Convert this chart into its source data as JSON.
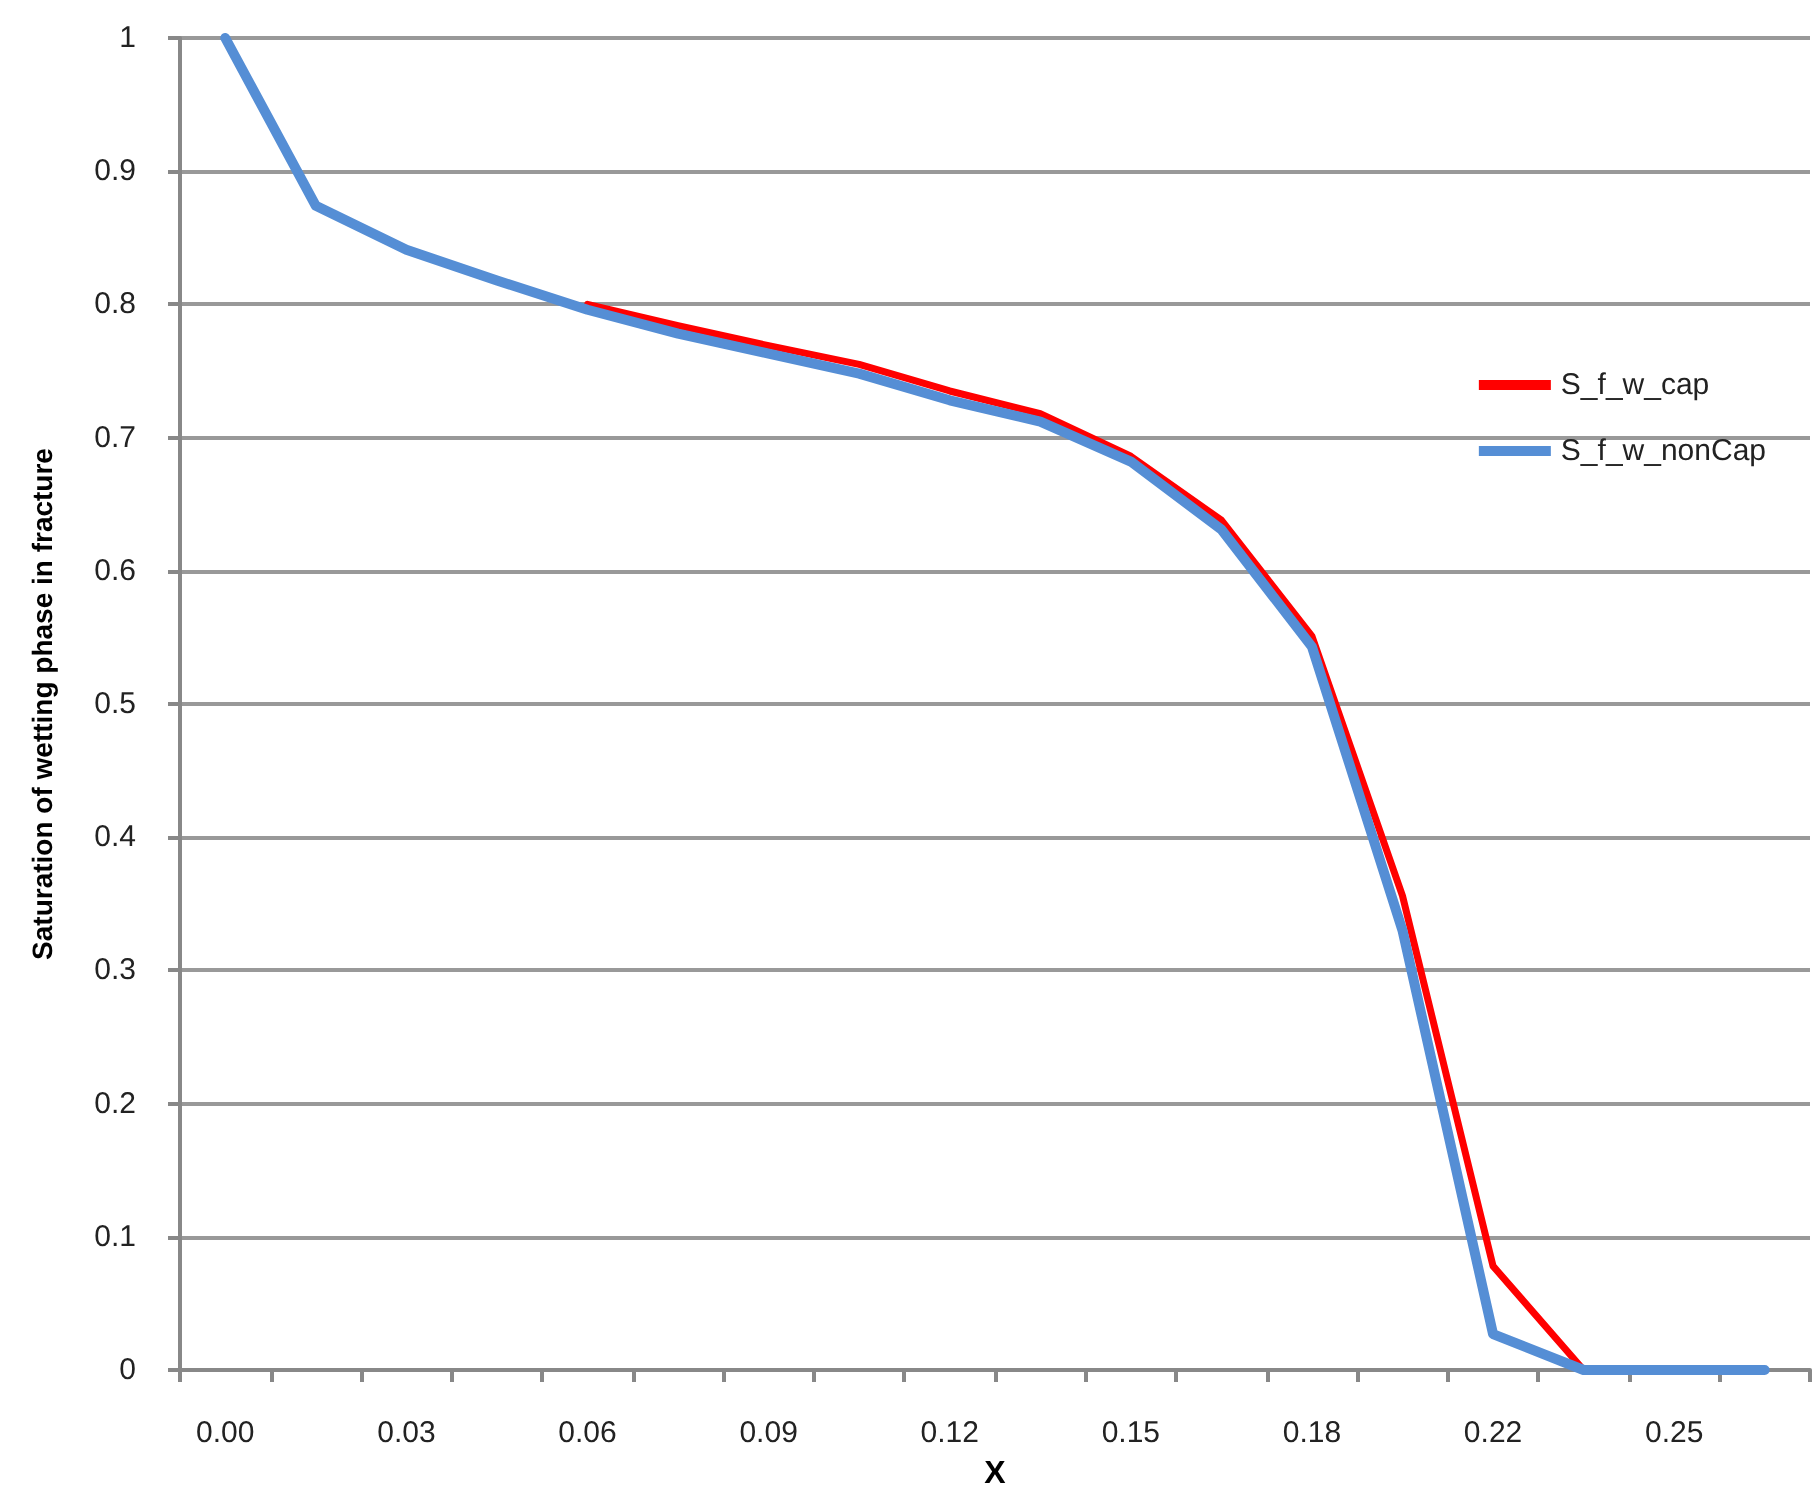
{
  "chart_data": {
    "type": "line",
    "xlabel": "X",
    "ylabel": "Saturation of wetting phase in fracture",
    "categories": [
      "0.00",
      null,
      "0.03",
      null,
      "0.06",
      null,
      "0.09",
      null,
      "0.12",
      null,
      "0.15",
      null,
      "0.18",
      null,
      "0.22",
      null,
      "0.25",
      null
    ],
    "series": [
      {
        "name": "S_f_w_cap",
        "color": "#ff0000",
        "values": [
          null,
          null,
          null,
          null,
          0.8,
          0.784,
          0.769,
          0.755,
          0.735,
          0.718,
          0.686,
          0.638,
          0.551,
          0.356,
          0.078,
          0,
          0,
          0
        ]
      },
      {
        "name": "S_f_w_nonCap",
        "color": "#558ed5",
        "values": [
          1,
          0.874,
          0.841,
          0.818,
          0.796,
          0.778,
          0.763,
          0.748,
          0.728,
          0.712,
          0.682,
          0.631,
          0.543,
          0.33,
          0.027,
          0,
          0,
          0
        ]
      }
    ],
    "ylim": [
      0,
      1
    ],
    "yticks": [
      0,
      0.1,
      0.2,
      0.3,
      0.4,
      0.5,
      0.6,
      0.7,
      0.8,
      0.9,
      1
    ],
    "grid": "y",
    "legend": "right",
    "marker": "none",
    "line_style": "solid"
  }
}
